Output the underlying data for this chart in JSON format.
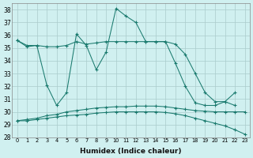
{
  "xlabel": "Humidex (Indice chaleur)",
  "background_color": "#d0f0f0",
  "line_color": "#1a7a6e",
  "grid_color": "#aacccc",
  "x": [
    0,
    1,
    2,
    3,
    4,
    5,
    6,
    7,
    8,
    9,
    10,
    11,
    12,
    13,
    14,
    15,
    16,
    17,
    18,
    19,
    20,
    21,
    22,
    23
  ],
  "series1": [
    35.6,
    35.1,
    35.2,
    32.1,
    30.5,
    31.5,
    36.1,
    35.2,
    33.3,
    34.7,
    38.1,
    37.5,
    37.0,
    35.5,
    35.5,
    35.5,
    33.8,
    32.0,
    30.7,
    30.5,
    30.5,
    30.8,
    31.5,
    null
  ],
  "series2": [
    35.6,
    35.2,
    35.2,
    35.1,
    35.1,
    35.2,
    35.5,
    35.3,
    35.4,
    35.5,
    35.5,
    35.5,
    35.5,
    35.5,
    35.5,
    35.5,
    35.3,
    34.5,
    33.0,
    31.5,
    30.8,
    30.8,
    30.5,
    null
  ],
  "series3": [
    29.3,
    29.4,
    29.5,
    29.7,
    29.8,
    30.0,
    30.1,
    30.2,
    30.3,
    30.35,
    30.4,
    30.4,
    30.45,
    30.45,
    30.45,
    30.4,
    30.3,
    30.2,
    30.1,
    30.05,
    30.0,
    30.0,
    30.0,
    30.0
  ],
  "series4": [
    29.3,
    29.3,
    29.4,
    29.5,
    29.6,
    29.7,
    29.75,
    29.8,
    29.9,
    29.95,
    30.0,
    30.0,
    30.0,
    30.0,
    30.0,
    29.95,
    29.85,
    29.7,
    29.5,
    29.3,
    29.1,
    28.9,
    28.6,
    28.25
  ],
  "ylim": [
    28,
    38.5
  ],
  "yticks": [
    28,
    29,
    30,
    31,
    32,
    33,
    34,
    35,
    36,
    37,
    38
  ],
  "xticks": [
    0,
    1,
    2,
    3,
    4,
    5,
    6,
    7,
    8,
    9,
    10,
    11,
    12,
    13,
    14,
    15,
    16,
    17,
    18,
    19,
    20,
    21,
    22,
    23
  ]
}
